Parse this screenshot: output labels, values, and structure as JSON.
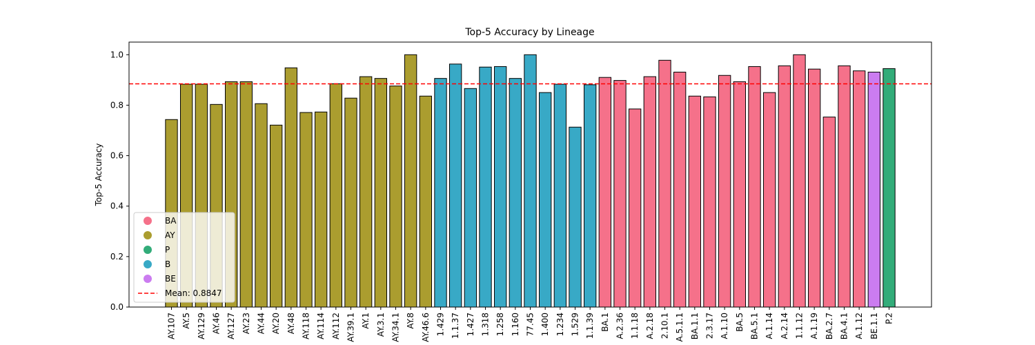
{
  "chart_data": {
    "type": "bar",
    "title": "Top-5 Accuracy by Lineage",
    "xlabel": "",
    "ylabel": "Top-5 Accuracy",
    "ylim": [
      0,
      1.05
    ],
    "yticks": [
      0.0,
      0.2,
      0.4,
      0.6,
      0.8,
      1.0
    ],
    "ytick_labels": [
      "0.0",
      "0.2",
      "0.4",
      "0.6",
      "0.8",
      "1.0"
    ],
    "grid": false,
    "legend_position": "lower-left",
    "mean": 0.8847,
    "mean_label": "Mean: 0.8847",
    "mean_color": "#ff0000",
    "groups": [
      {
        "name": "BA",
        "color": "#f5718a"
      },
      {
        "name": "AY",
        "color": "#ab9d2f"
      },
      {
        "name": "P",
        "color": "#32ac79"
      },
      {
        "name": "B",
        "color": "#38a9c6"
      },
      {
        "name": "BE",
        "color": "#cb7cf0"
      }
    ],
    "categories": [
      "AY.107",
      "AY.5",
      "AY.129",
      "AY.46",
      "AY.127",
      "AY.23",
      "AY.44",
      "AY.20",
      "AY.48",
      "AY.118",
      "AY.114",
      "AY.112",
      "AY.39.1",
      "AY.1",
      "AY.3.1",
      "AY.34.1",
      "AY.8",
      "AY.46.6",
      "1.429",
      "1.1.37",
      "1.427",
      "1.318",
      "1.258",
      "1.160",
      "77.45",
      "1.400",
      "1.234",
      "1.529",
      "1.1.39",
      "BA.1",
      "A.2.36",
      "1.1.18",
      "A.2.18",
      "2.10.1",
      "A.5.1.1",
      "BA.1.1",
      "2.3.17",
      "A.1.10",
      "BA.5",
      "BA.5.1",
      "A.1.14",
      "A.2.14",
      "1.1.12",
      "A.1.19",
      "BA.2.7",
      "BA.4.1",
      "A.1.12",
      "BE.1.1",
      "P.2"
    ],
    "values": [
      0.743,
      0.883,
      0.883,
      0.803,
      0.893,
      0.893,
      0.806,
      0.721,
      0.948,
      0.771,
      0.773,
      0.885,
      0.828,
      0.913,
      0.906,
      0.876,
      1.0,
      0.836,
      0.906,
      0.963,
      0.866,
      0.951,
      0.953,
      0.906,
      1.0,
      0.85,
      0.883,
      0.713,
      0.881,
      0.91,
      0.898,
      0.785,
      0.913,
      0.978,
      0.931,
      0.836,
      0.833,
      0.918,
      0.893,
      0.953,
      0.85,
      0.956,
      1.0,
      0.943,
      0.753,
      0.956,
      0.936,
      0.931,
      0.945
    ],
    "bar_groups": [
      "AY",
      "AY",
      "AY",
      "AY",
      "AY",
      "AY",
      "AY",
      "AY",
      "AY",
      "AY",
      "AY",
      "AY",
      "AY",
      "AY",
      "AY",
      "AY",
      "AY",
      "AY",
      "B",
      "B",
      "B",
      "B",
      "B",
      "B",
      "B",
      "B",
      "B",
      "B",
      "B",
      "BA",
      "BA",
      "BA",
      "BA",
      "BA",
      "BA",
      "BA",
      "BA",
      "BA",
      "BA",
      "BA",
      "BA",
      "BA",
      "BA",
      "BA",
      "BA",
      "BA",
      "BA",
      "BE",
      "P"
    ]
  }
}
